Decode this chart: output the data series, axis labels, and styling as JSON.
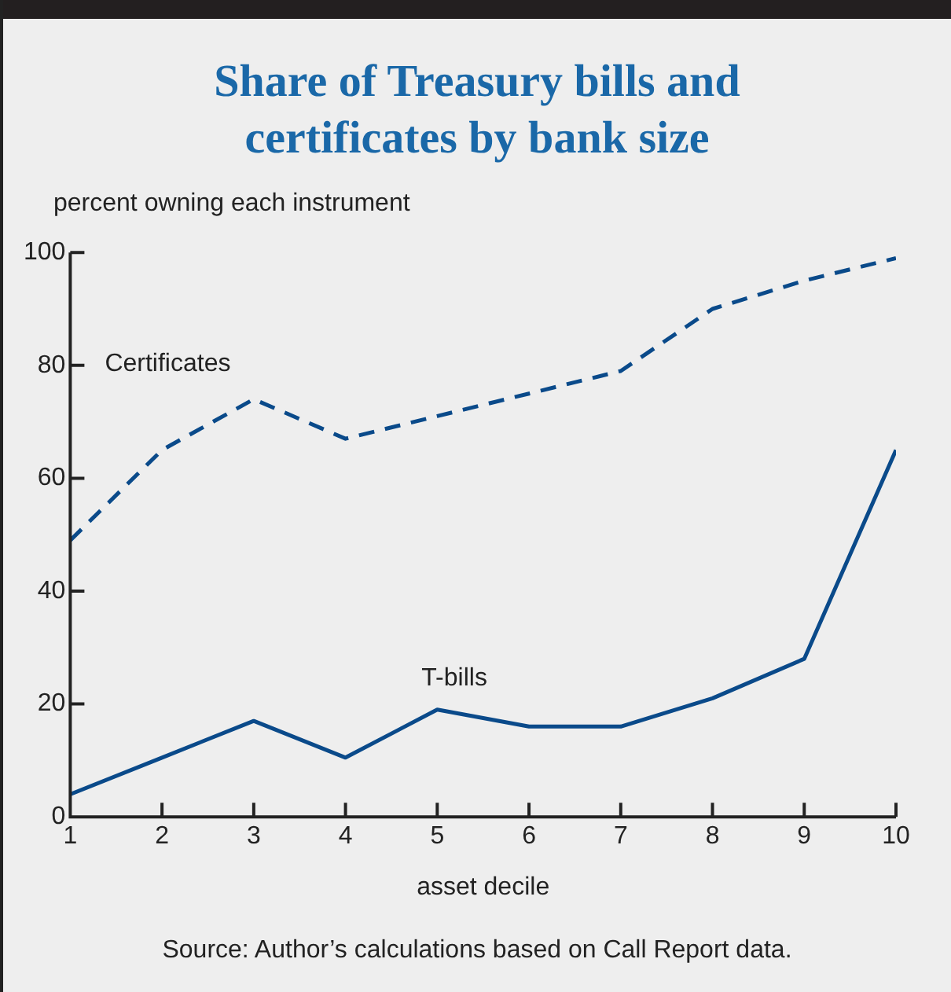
{
  "chart_data": {
    "type": "line",
    "title": "Share of Treasury bills and certificates by bank size",
    "ylabel": "percent owning each instrument",
    "xlabel": "asset decile",
    "x": [
      1,
      2,
      3,
      4,
      5,
      6,
      7,
      8,
      9,
      10
    ],
    "series": [
      {
        "name": "Certificates",
        "color": "#0a4a8a",
        "line_style": "dashed",
        "values": [
          49,
          65,
          74,
          67,
          71,
          75,
          79,
          90,
          95,
          99
        ]
      },
      {
        "name": "T-bills",
        "color": "#0a4a8a",
        "line_style": "solid",
        "values": [
          4,
          10.5,
          17,
          10.5,
          19,
          16,
          16,
          21,
          28,
          65
        ]
      }
    ],
    "xlim": [
      1,
      10
    ],
    "xticks": [
      1,
      2,
      3,
      4,
      5,
      6,
      7,
      8,
      9,
      10
    ],
    "ylim": [
      0,
      100
    ],
    "yticks": [
      0,
      20,
      40,
      60,
      80,
      100
    ],
    "grid": false,
    "marker": "none",
    "annotations": [
      "Source: Author’s calculations based on Call Report data."
    ]
  }
}
